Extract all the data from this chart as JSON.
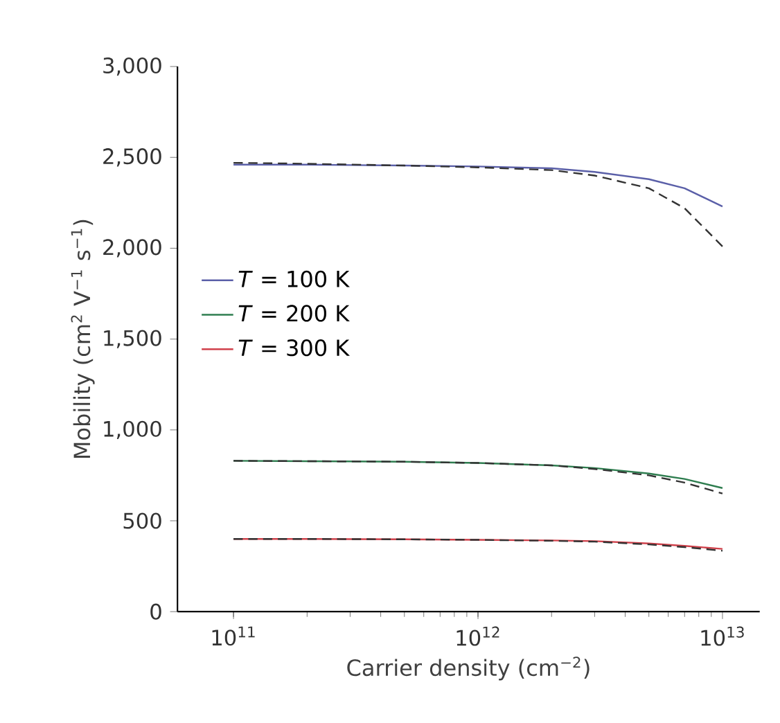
{
  "chart_data": {
    "type": "line",
    "xlabel": "Carrier density (cm$^{−2}$)",
    "ylabel": "Mobility (cm$^{2}$ V$^{−1}$ s$^{−1}$)",
    "log": "x",
    "xlim": [
      59000000000.0,
      14200000000000.0
    ],
    "ylim": [
      0,
      3000
    ],
    "xticks": [
      {
        "value": 100000000000.0,
        "label": "10$^{11}$"
      },
      {
        "value": 1000000000000.0,
        "label": "10$^{12}$"
      },
      {
        "value": 10000000000000.0,
        "label": "10$^{13}$"
      }
    ],
    "yticks": [
      {
        "value": 0,
        "label": "0"
      },
      {
        "value": 500,
        "label": "500"
      },
      {
        "value": 1000,
        "label": "1,000"
      },
      {
        "value": 1500,
        "label": "1,500"
      },
      {
        "value": 2000,
        "label": "2,000"
      },
      {
        "value": 2500,
        "label": "2,500"
      },
      {
        "value": 3000,
        "label": "3,000"
      }
    ],
    "x": [
      100000000000.0,
      200000000000.0,
      500000000000.0,
      1000000000000.0,
      2000000000000.0,
      3000000000000.0,
      5000000000000.0,
      7000000000000.0,
      10000000000000.0
    ],
    "grid": false,
    "legend": "left",
    "marker": "none",
    "series": [
      {
        "name": "*T* = 100 K",
        "color": "#5a5fa8",
        "line_style": "solid",
        "values": [
          2460,
          2460,
          2455,
          2450,
          2440,
          2420,
          2380,
          2330,
          2230
        ]
      },
      {
        "name": "*T* = 200 K",
        "color": "#2e7d4f",
        "line_style": "solid",
        "values": [
          830,
          828,
          825,
          818,
          805,
          790,
          760,
          730,
          680
        ]
      },
      {
        "name": "*T* = 300 K",
        "color": "#d0404a",
        "line_style": "solid",
        "values": [
          400,
          400,
          398,
          395,
          392,
          388,
          375,
          362,
          345
        ]
      },
      {
        "color": "#333333",
        "line_style": "dashed",
        "values": [
          2470,
          2465,
          2455,
          2445,
          2430,
          2400,
          2330,
          2220,
          2010
        ]
      },
      {
        "color": "#333333",
        "line_style": "dashed",
        "values": [
          830,
          828,
          825,
          818,
          805,
          785,
          750,
          710,
          650
        ]
      },
      {
        "color": "#333333",
        "line_style": "dashed",
        "values": [
          400,
          400,
          398,
          395,
          390,
          385,
          370,
          355,
          335
        ]
      }
    ]
  }
}
